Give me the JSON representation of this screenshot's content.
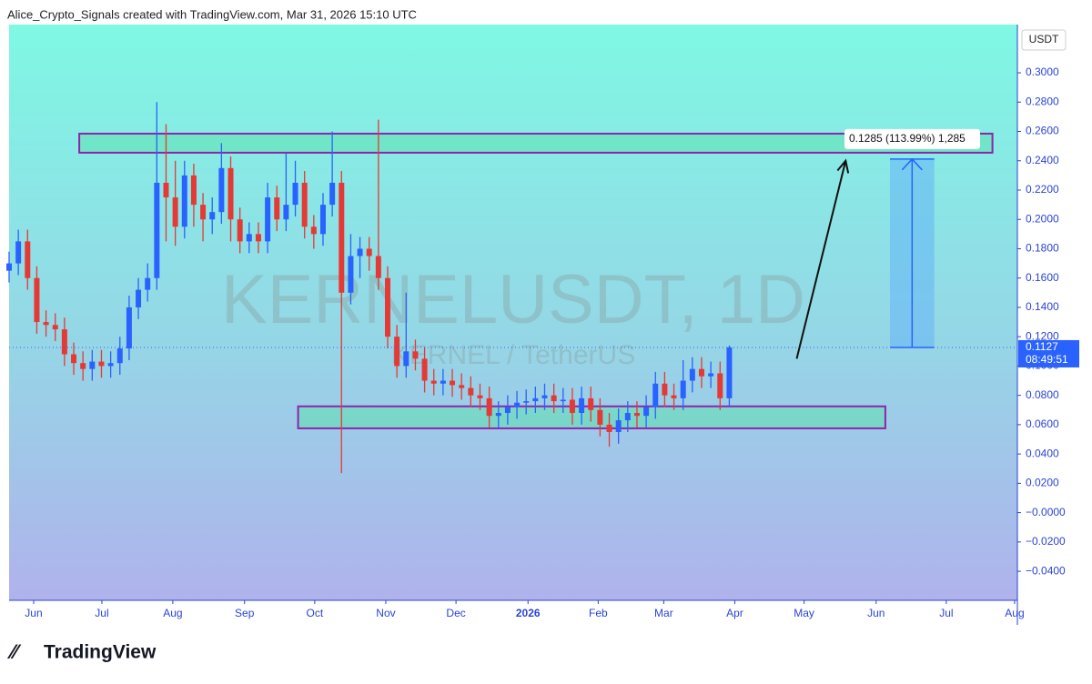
{
  "chart_data": {
    "type": "candlestick",
    "caption": "Alice_Crypto_Signals created with TradingView.com, Mar 31, 2026 15:10 UTC",
    "title": "KERNELUSDT, 1D",
    "subtitle": "KERNEL / TetherUS",
    "currency": "USDT",
    "last_price": 0.1127,
    "countdown": "08:49:51",
    "brand": "TradingView",
    "up_color": "#2962ff",
    "down_color": "#e53935",
    "open": [
      0.165,
      0.17,
      0.185,
      0.16,
      0.13,
      0.128,
      0.125,
      0.108,
      0.102,
      0.098,
      0.103,
      0.1,
      0.102,
      0.112,
      0.14,
      0.152,
      0.16,
      0.225,
      0.215,
      0.195,
      0.23,
      0.21,
      0.2,
      0.205,
      0.235,
      0.2,
      0.185,
      0.19,
      0.185,
      0.215,
      0.2,
      0.21,
      0.225,
      0.195,
      0.19,
      0.21,
      0.225,
      0.15,
      0.175,
      0.18,
      0.175,
      0.16,
      0.12,
      0.1,
      0.11,
      0.105,
      0.09,
      0.088,
      0.09,
      0.087,
      0.085,
      0.08,
      0.078,
      0.066,
      0.068,
      0.072,
      0.075,
      0.076,
      0.078,
      0.08,
      0.076,
      0.077,
      0.068,
      0.078,
      0.07,
      0.06,
      0.055,
      0.063,
      0.068,
      0.066,
      0.072,
      0.088,
      0.08,
      0.078,
      0.09,
      0.098,
      0.093,
      0.095,
      0.078
    ],
    "high": [
      0.178,
      0.193,
      0.193,
      0.168,
      0.138,
      0.136,
      0.133,
      0.116,
      0.11,
      0.111,
      0.111,
      0.11,
      0.12,
      0.148,
      0.16,
      0.17,
      0.28,
      0.265,
      0.24,
      0.24,
      0.238,
      0.218,
      0.215,
      0.252,
      0.243,
      0.208,
      0.198,
      0.198,
      0.225,
      0.223,
      0.245,
      0.24,
      0.233,
      0.203,
      0.218,
      0.26,
      0.233,
      0.19,
      0.188,
      0.188,
      0.268,
      0.168,
      0.128,
      0.15,
      0.118,
      0.113,
      0.098,
      0.098,
      0.098,
      0.095,
      0.093,
      0.088,
      0.086,
      0.076,
      0.08,
      0.083,
      0.084,
      0.086,
      0.088,
      0.088,
      0.085,
      0.085,
      0.086,
      0.086,
      0.078,
      0.068,
      0.071,
      0.076,
      0.076,
      0.08,
      0.096,
      0.096,
      0.088,
      0.104,
      0.106,
      0.106,
      0.103,
      0.103,
      0.114
    ],
    "low": [
      0.157,
      0.162,
      0.152,
      0.122,
      0.12,
      0.117,
      0.1,
      0.094,
      0.09,
      0.09,
      0.092,
      0.092,
      0.094,
      0.104,
      0.132,
      0.144,
      0.152,
      0.185,
      0.182,
      0.187,
      0.195,
      0.185,
      0.19,
      0.197,
      0.185,
      0.177,
      0.177,
      0.177,
      0.177,
      0.192,
      0.192,
      0.202,
      0.187,
      0.18,
      0.182,
      0.202,
      0.027,
      0.142,
      0.16,
      0.165,
      0.152,
      0.112,
      0.092,
      0.092,
      0.097,
      0.082,
      0.08,
      0.08,
      0.079,
      0.077,
      0.072,
      0.07,
      0.058,
      0.058,
      0.06,
      0.064,
      0.067,
      0.068,
      0.07,
      0.068,
      0.068,
      0.06,
      0.06,
      0.062,
      0.052,
      0.045,
      0.047,
      0.055,
      0.058,
      0.058,
      0.064,
      0.072,
      0.07,
      0.07,
      0.082,
      0.085,
      0.085,
      0.07,
      0.073
    ],
    "close": [
      0.17,
      0.185,
      0.16,
      0.13,
      0.128,
      0.125,
      0.108,
      0.102,
      0.098,
      0.103,
      0.1,
      0.102,
      0.112,
      0.14,
      0.152,
      0.16,
      0.225,
      0.215,
      0.195,
      0.23,
      0.21,
      0.2,
      0.205,
      0.235,
      0.2,
      0.185,
      0.19,
      0.185,
      0.215,
      0.2,
      0.21,
      0.225,
      0.195,
      0.19,
      0.21,
      0.225,
      0.15,
      0.175,
      0.18,
      0.175,
      0.16,
      0.12,
      0.1,
      0.11,
      0.105,
      0.09,
      0.088,
      0.09,
      0.087,
      0.085,
      0.08,
      0.078,
      0.066,
      0.068,
      0.072,
      0.075,
      0.076,
      0.078,
      0.08,
      0.076,
      0.077,
      0.068,
      0.078,
      0.07,
      0.06,
      0.055,
      0.063,
      0.068,
      0.066,
      0.072,
      0.088,
      0.08,
      0.078,
      0.09,
      0.098,
      0.093,
      0.095,
      0.078,
      0.1127
    ],
    "xlim": [
      0,
      109.2
    ],
    "xticks": [
      {
        "value": 2.66,
        "label": "Jun"
      },
      {
        "value": 10.05,
        "label": "Jul"
      },
      {
        "value": 17.73,
        "label": "Aug"
      },
      {
        "value": 25.5,
        "label": "Sep"
      },
      {
        "value": 33.1,
        "label": "Oct"
      },
      {
        "value": 40.8,
        "label": "Nov"
      },
      {
        "value": 48.4,
        "label": "Dec"
      },
      {
        "value": 56.2,
        "label": "2026"
      },
      {
        "value": 63.8,
        "label": "Feb"
      },
      {
        "value": 70.9,
        "label": "Mar"
      },
      {
        "value": 78.6,
        "label": "Apr"
      },
      {
        "value": 86.1,
        "label": "May"
      },
      {
        "value": 93.9,
        "label": "Jun"
      },
      {
        "value": 101.5,
        "label": "Jul"
      },
      {
        "value": 108.9,
        "label": "Aug"
      }
    ],
    "ylim": [
      -0.0598,
      0.3329
    ],
    "yticks": [
      {
        "value": 0.3,
        "label": "0.3000"
      },
      {
        "value": 0.28,
        "label": "0.2800"
      },
      {
        "value": 0.26,
        "label": "0.2600"
      },
      {
        "value": 0.24,
        "label": "0.2400"
      },
      {
        "value": 0.22,
        "label": "0.2200"
      },
      {
        "value": 0.2,
        "label": "0.2000"
      },
      {
        "value": 0.18,
        "label": "0.1800"
      },
      {
        "value": 0.16,
        "label": "0.1600"
      },
      {
        "value": 0.14,
        "label": "0.1400"
      },
      {
        "value": 0.12,
        "label": "0.1200"
      },
      {
        "value": 0.1,
        "label": "0.1000"
      },
      {
        "value": 0.08,
        "label": "0.0800"
      },
      {
        "value": 0.06,
        "label": "0.0600"
      },
      {
        "value": 0.04,
        "label": "0.0400"
      },
      {
        "value": 0.02,
        "label": "0.0200"
      },
      {
        "value": 0,
        "label": "−0.0000"
      },
      {
        "value": -0.02,
        "label": "−0.0200"
      },
      {
        "value": -0.04,
        "label": "−0.0400"
      }
    ],
    "zones": [
      {
        "x": [
          7.6,
          106.5
        ],
        "y": [
          0.2455,
          0.2585
        ]
      },
      {
        "x": [
          31.3,
          94.9
        ],
        "y": [
          0.0575,
          0.0725
        ]
      }
    ],
    "measure": {
      "x": [
        95.4,
        100.2
      ],
      "y": [
        0.1127,
        0.2412
      ],
      "label": "0.1285 (113.99%) 1,285"
    },
    "arrow": {
      "x": [
        85.3,
        90.6
      ],
      "y": [
        0.105,
        0.24
      ]
    }
  }
}
